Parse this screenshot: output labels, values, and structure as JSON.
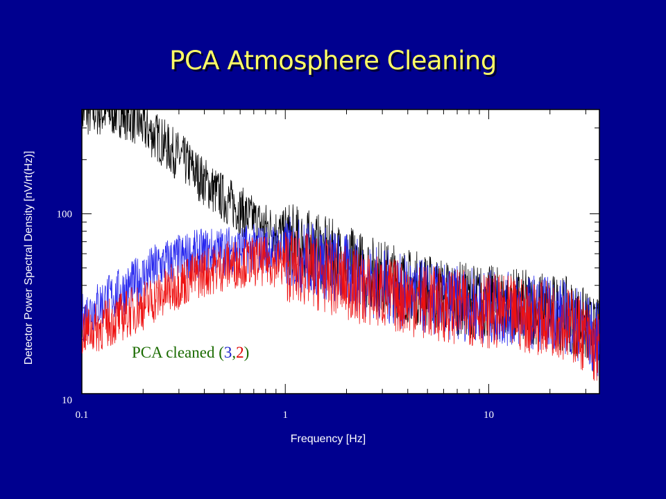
{
  "slide": {
    "title": "PCA Atmosphere Cleaning",
    "background": "#00008f",
    "title_color": "#ffff66"
  },
  "chart_data": {
    "type": "line",
    "title": "",
    "xlabel": "Frequency [Hz]",
    "ylabel": "Detector Power Spectral Density [nV/rt(Hz)]",
    "x_scale": "log",
    "y_scale": "log",
    "xlim": [
      0.1,
      35
    ],
    "ylim": [
      10,
      380
    ],
    "x_tick_labels": [
      {
        "value": 0.1,
        "label": "0.1"
      },
      {
        "value": 1,
        "label": "1"
      },
      {
        "value": 10,
        "label": "10"
      }
    ],
    "y_tick_labels": [
      {
        "value": 10,
        "label": "10"
      },
      {
        "value": 100,
        "label": "100"
      }
    ],
    "grid": false,
    "annotation": {
      "prefix": "PCA cleaned (",
      "n1": "3",
      "comma": ",",
      "n2": "2",
      "suffix": ")",
      "colors": {
        "text": "#1a6b00",
        "n1": "#1a22cc",
        "n2": "#e00000"
      }
    },
    "series": [
      {
        "color": "#000000",
        "x": [
          0.1,
          0.11,
          0.12,
          0.13,
          0.15,
          0.17,
          0.19,
          0.21,
          0.24,
          0.27,
          0.3,
          0.34,
          0.38,
          0.43,
          0.48,
          0.54,
          0.6,
          0.67,
          0.75,
          0.85,
          0.95,
          1.07,
          1.2,
          1.35,
          1.5,
          1.7,
          1.9,
          2.15,
          2.4,
          2.7,
          3.0,
          3.4,
          3.8,
          4.3,
          4.8,
          5.4,
          6.0,
          6.8,
          7.6,
          8.5,
          9.5,
          10.7,
          12.0,
          13.5,
          15.0,
          17.0,
          19.0,
          21.5,
          24.0,
          27.0,
          30.0,
          33.0
        ],
        "y": [
          380,
          380,
          380,
          380,
          380,
          360,
          330,
          300,
          270,
          235,
          215,
          190,
          165,
          145,
          130,
          118,
          108,
          98,
          90,
          85,
          80,
          75,
          71,
          68,
          64,
          61,
          58,
          55,
          52,
          49,
          47,
          45,
          43,
          41,
          40,
          38,
          37,
          36,
          35,
          34.5,
          34,
          33.5,
          33,
          32.5,
          32,
          31.5,
          31,
          30,
          29,
          27,
          25,
          22
        ]
      },
      {
        "color": "#2222ee",
        "x": [
          0.1,
          0.11,
          0.12,
          0.13,
          0.15,
          0.17,
          0.19,
          0.21,
          0.24,
          0.27,
          0.3,
          0.34,
          0.38,
          0.43,
          0.48,
          0.54,
          0.6,
          0.67,
          0.75,
          0.85,
          0.95,
          1.07,
          1.2,
          1.35,
          1.5,
          1.7,
          1.9,
          2.15,
          2.4,
          2.7,
          3.0,
          3.4,
          3.8,
          4.3,
          4.8,
          5.4,
          6.0,
          6.8,
          7.6,
          8.5,
          9.5,
          10.7,
          12.0,
          13.5,
          15.0,
          17.0,
          19.0,
          21.5,
          24.0,
          27.0,
          30.0,
          33.0
        ],
        "y": [
          27,
          30,
          32,
          34,
          37,
          40,
          44,
          48,
          53,
          56,
          58,
          60,
          62,
          63,
          64,
          65,
          65,
          66,
          66,
          66,
          65,
          63,
          61,
          59,
          57,
          54,
          51,
          49,
          46,
          44,
          42,
          40,
          38.5,
          37,
          36,
          35,
          34,
          33.5,
          33,
          32.5,
          32,
          31.5,
          31,
          30.5,
          30,
          30,
          29.5,
          29,
          28,
          26,
          24,
          21
        ]
      },
      {
        "color": "#ee1111",
        "x": [
          0.1,
          0.11,
          0.12,
          0.13,
          0.15,
          0.17,
          0.19,
          0.21,
          0.24,
          0.27,
          0.3,
          0.34,
          0.38,
          0.43,
          0.48,
          0.54,
          0.6,
          0.67,
          0.75,
          0.85,
          0.95,
          1.07,
          1.2,
          1.35,
          1.5,
          1.7,
          1.9,
          2.15,
          2.4,
          2.7,
          3.0,
          3.4,
          3.8,
          4.3,
          4.8,
          5.4,
          6.0,
          6.8,
          7.6,
          8.5,
          9.5,
          10.7,
          12.0,
          13.5,
          15.0,
          17.0,
          19.0,
          21.5,
          24.0,
          27.0,
          30.0,
          33.0
        ],
        "y": [
          23,
          23.5,
          24,
          25,
          27,
          29,
          31,
          33,
          36,
          39,
          42,
          45,
          48,
          50,
          52,
          54,
          55,
          56,
          56,
          56,
          55,
          54,
          52,
          50,
          48,
          46,
          44,
          42,
          40,
          39,
          38,
          37,
          36,
          35,
          34,
          33,
          32.5,
          32,
          31.5,
          31,
          30.5,
          30,
          29.5,
          29,
          28.5,
          28,
          27.5,
          27,
          26,
          24,
          22,
          19
        ]
      }
    ]
  }
}
